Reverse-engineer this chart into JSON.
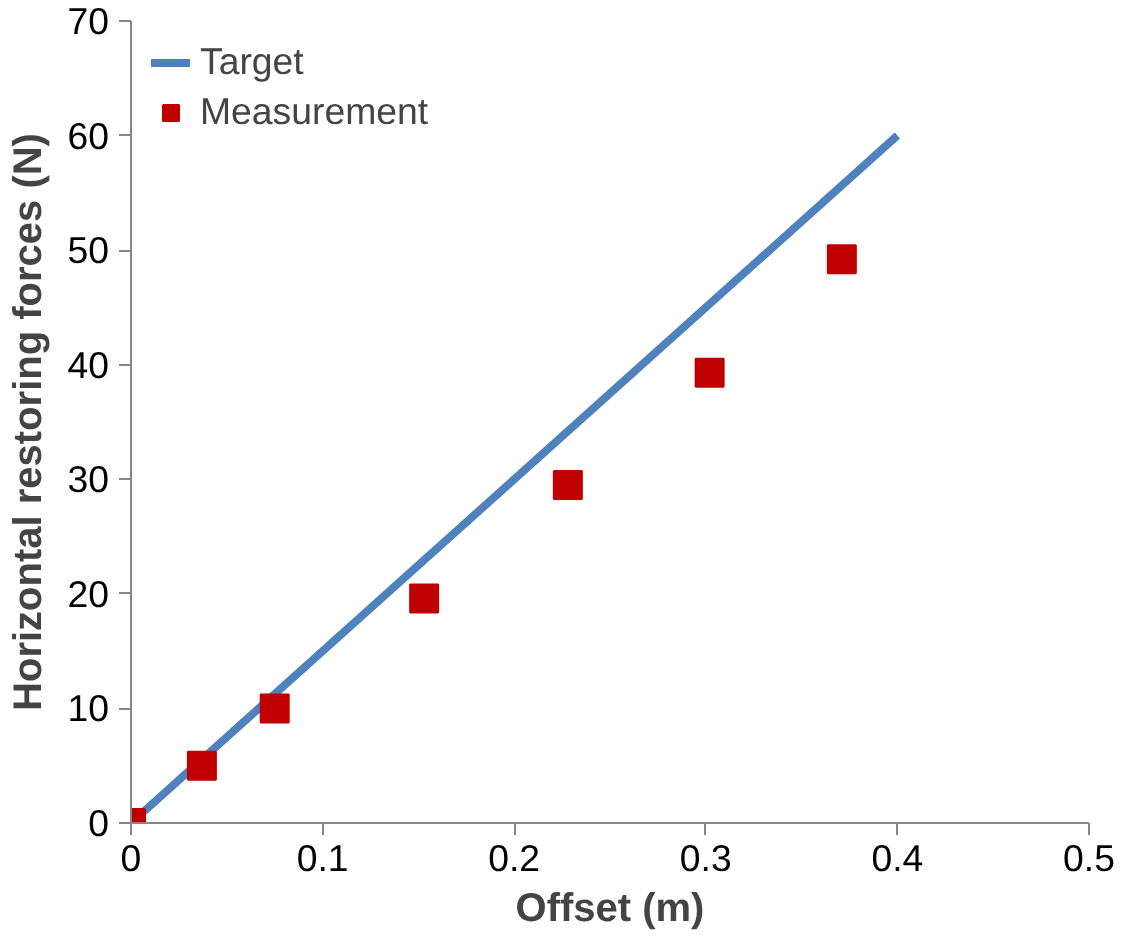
{
  "chart_data": {
    "type": "scatter",
    "xlabel": "Offset (m)",
    "ylabel": "Horizontal restoring forces (N)",
    "xlim": [
      0,
      0.5
    ],
    "ylim": [
      0,
      70
    ],
    "xticks": [
      0,
      0.1,
      0.2,
      0.3,
      0.4,
      0.5
    ],
    "yticks": [
      0,
      10,
      20,
      30,
      40,
      50,
      60,
      70
    ],
    "legend": "top left",
    "grid": false,
    "series": [
      {
        "name": "Target",
        "type": "line",
        "color": "#4f81bd",
        "x": [
          0,
          0.4
        ],
        "values": [
          0,
          60
        ],
        "marker": "none",
        "line_style": "solid"
      },
      {
        "name": "Measurement",
        "color": "#c00000",
        "x": [
          0,
          0.037,
          0.075,
          0.153,
          0.228,
          0.302,
          0.371
        ],
        "values": [
          0,
          5,
          10,
          19.6,
          29.5,
          39.3,
          49.2
        ],
        "marker": "square"
      }
    ]
  }
}
